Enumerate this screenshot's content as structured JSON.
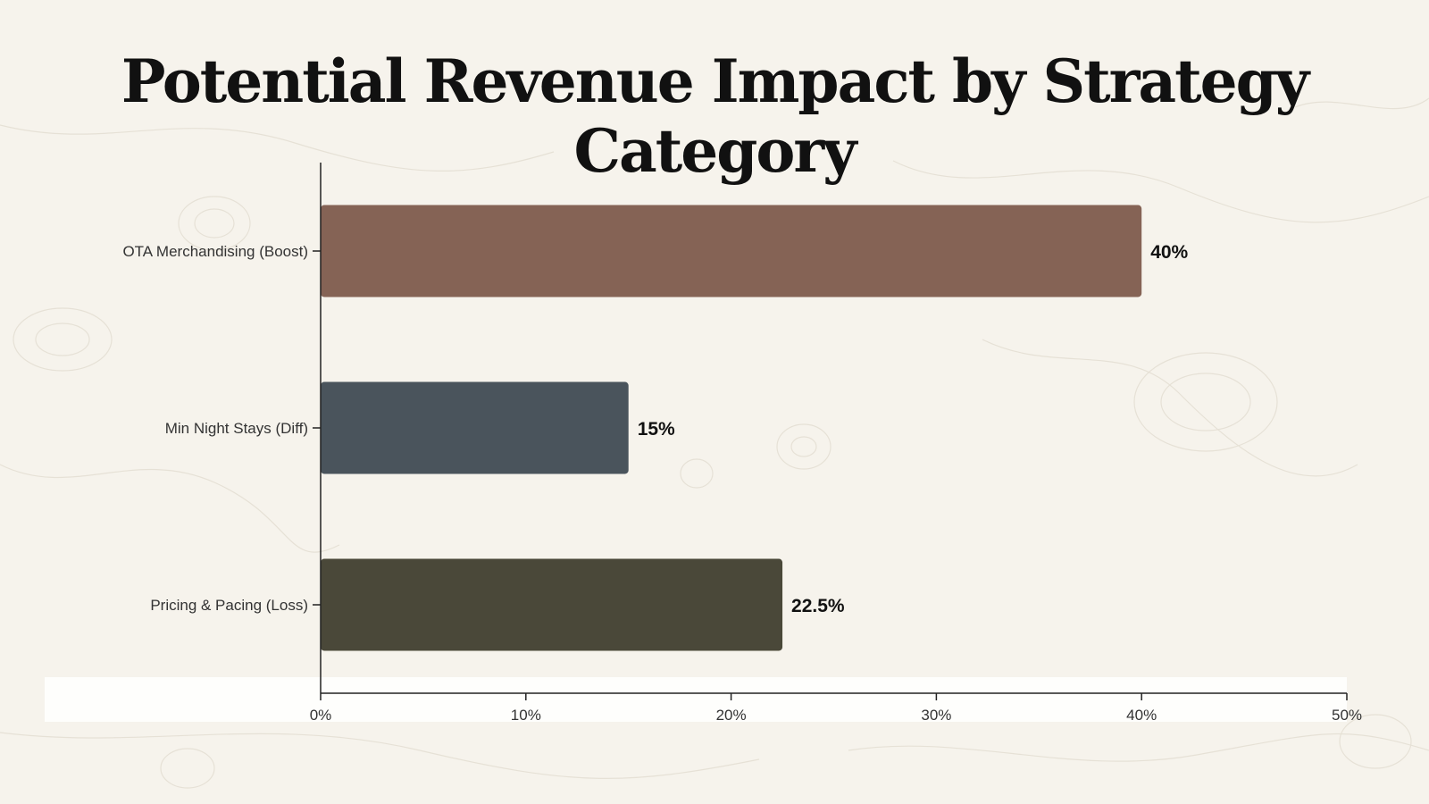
{
  "chart_data": {
    "type": "bar",
    "orientation": "horizontal",
    "title": "Potential Revenue Impact by Strategy Category",
    "categories": [
      "OTA Merchandising (Boost)",
      "Min Night Stays (Diff)",
      "Pricing & Pacing (Loss)"
    ],
    "values": [
      40,
      15,
      22.5
    ],
    "value_labels": [
      "40%",
      "15%",
      "22.5%"
    ],
    "colors": [
      "#856355",
      "#4a545c",
      "#4a4839"
    ],
    "xlim": [
      0,
      50
    ],
    "xticks": [
      0,
      10,
      20,
      30,
      40,
      50
    ],
    "xtick_labels": [
      "0%",
      "10%",
      "20%",
      "30%",
      "40%",
      "50%"
    ],
    "xlabel": "",
    "ylabel": "",
    "grid": false
  }
}
